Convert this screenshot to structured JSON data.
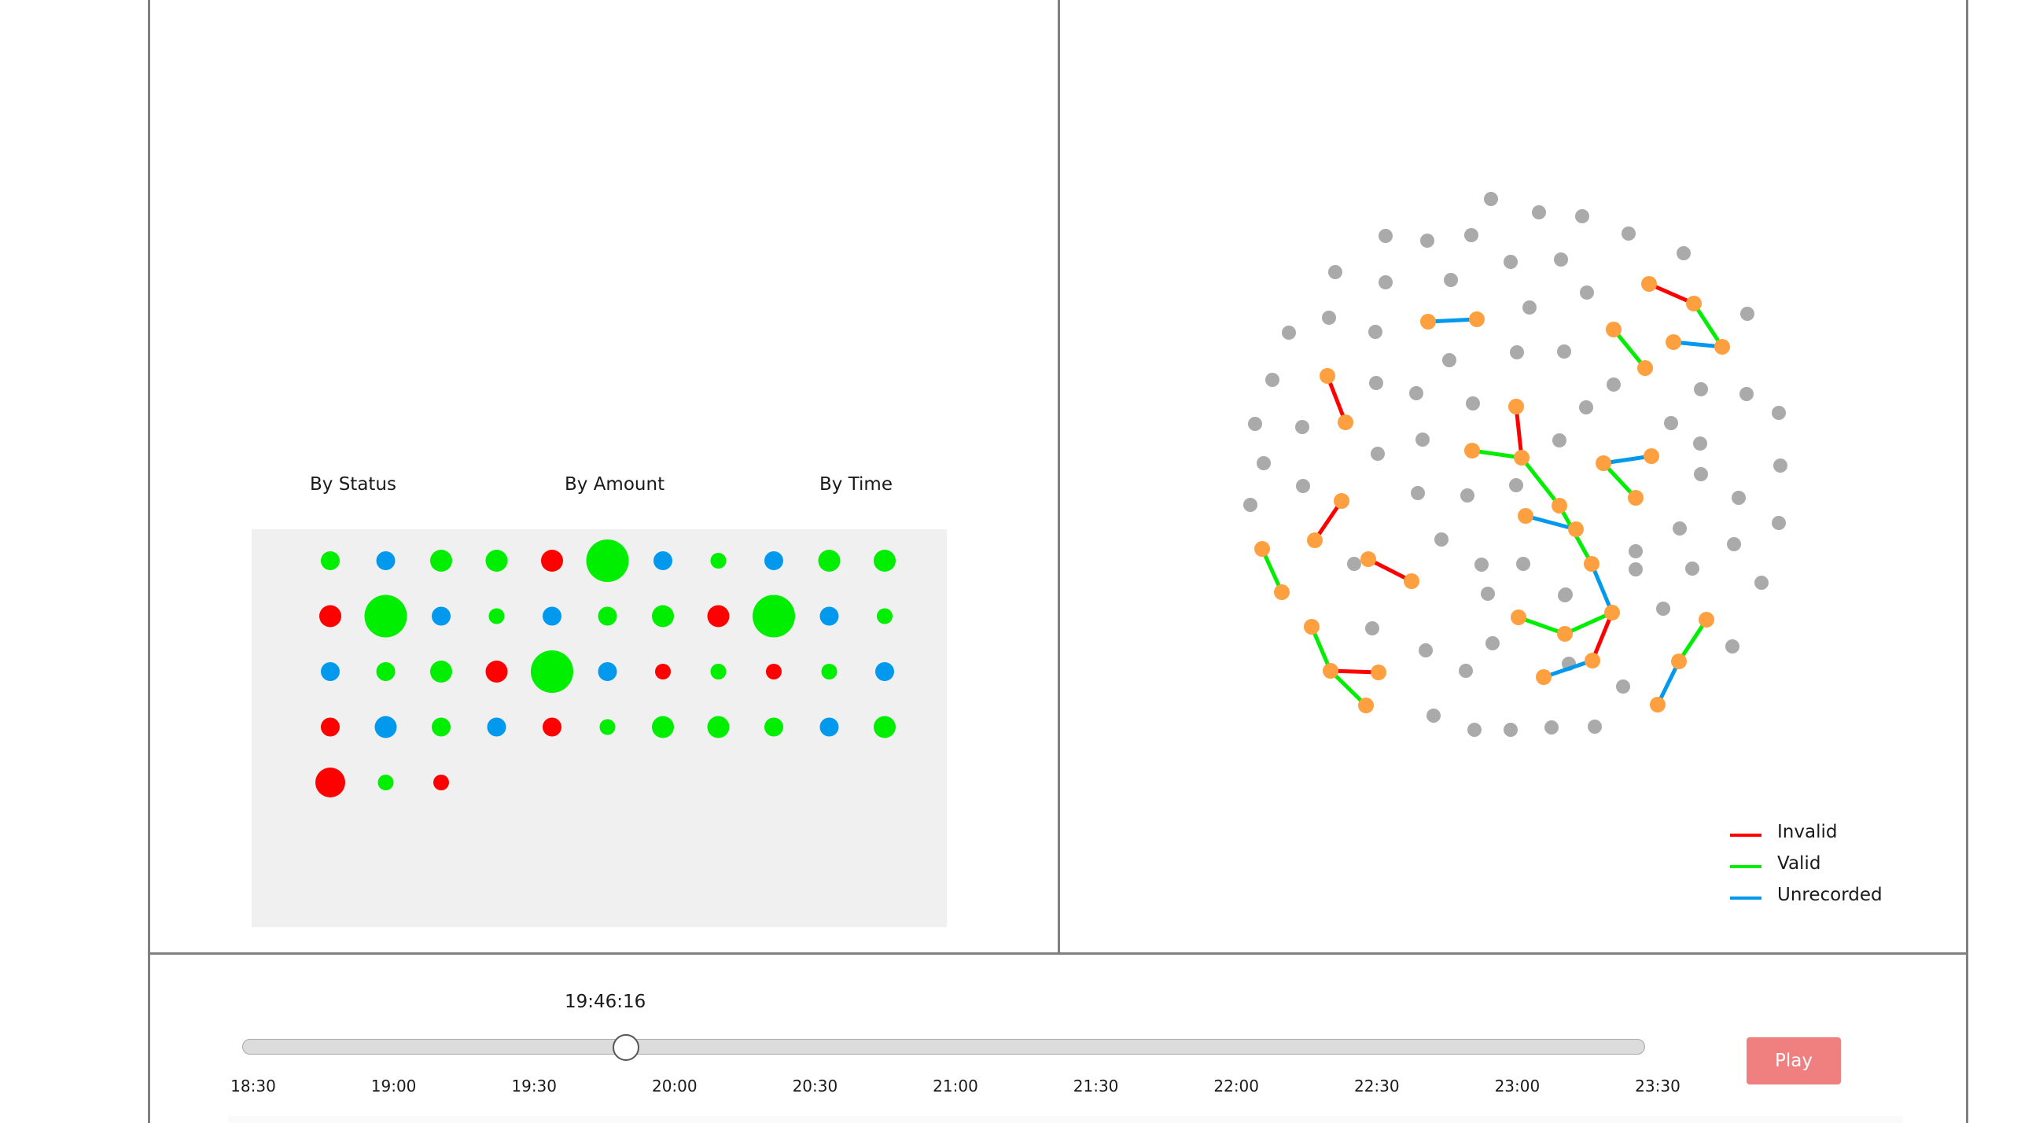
{
  "sort_controls": {
    "by_status": "By Status",
    "by_amount": "By Amount",
    "by_time": "By Time"
  },
  "colors": {
    "invalid": "#ff0000",
    "valid": "#00ee00",
    "unrecorded": "#0099ee",
    "node_idle": "#aaaaaa",
    "node_active": "#ffa040",
    "play_button": "#f08080"
  },
  "transactions": [
    {
      "status": "valid",
      "amount": "m"
    },
    {
      "status": "unrecorded",
      "amount": "m"
    },
    {
      "status": "valid",
      "amount": "l"
    },
    {
      "status": "valid",
      "amount": "l"
    },
    {
      "status": "invalid",
      "amount": "l"
    },
    {
      "status": "valid",
      "amount": "xl"
    },
    {
      "status": "unrecorded",
      "amount": "m"
    },
    {
      "status": "valid",
      "amount": "s"
    },
    {
      "status": "unrecorded",
      "amount": "m"
    },
    {
      "status": "valid",
      "amount": "l"
    },
    {
      "status": "valid",
      "amount": "l"
    },
    {
      "status": "invalid",
      "amount": "l"
    },
    {
      "status": "valid",
      "amount": "xl"
    },
    {
      "status": "unrecorded",
      "amount": "m"
    },
    {
      "status": "valid",
      "amount": "s"
    },
    {
      "status": "unrecorded",
      "amount": "m"
    },
    {
      "status": "valid",
      "amount": "m"
    },
    {
      "status": "valid",
      "amount": "l"
    },
    {
      "status": "invalid",
      "amount": "l"
    },
    {
      "status": "valid",
      "amount": "xl"
    },
    {
      "status": "unrecorded",
      "amount": "m"
    },
    {
      "status": "valid",
      "amount": "s"
    },
    {
      "status": "unrecorded",
      "amount": "m"
    },
    {
      "status": "valid",
      "amount": "m"
    },
    {
      "status": "valid",
      "amount": "l"
    },
    {
      "status": "invalid",
      "amount": "l"
    },
    {
      "status": "valid",
      "amount": "xl"
    },
    {
      "status": "unrecorded",
      "amount": "m"
    },
    {
      "status": "invalid",
      "amount": "s"
    },
    {
      "status": "valid",
      "amount": "s"
    },
    {
      "status": "invalid",
      "amount": "s"
    },
    {
      "status": "valid",
      "amount": "s"
    },
    {
      "status": "unrecorded",
      "amount": "m"
    },
    {
      "status": "invalid",
      "amount": "m"
    },
    {
      "status": "unrecorded",
      "amount": "l"
    },
    {
      "status": "valid",
      "amount": "m"
    },
    {
      "status": "unrecorded",
      "amount": "m"
    },
    {
      "status": "invalid",
      "amount": "m"
    },
    {
      "status": "valid",
      "amount": "s"
    },
    {
      "status": "valid",
      "amount": "l"
    },
    {
      "status": "valid",
      "amount": "l"
    },
    {
      "status": "valid",
      "amount": "m"
    },
    {
      "status": "unrecorded",
      "amount": "m"
    },
    {
      "status": "valid",
      "amount": "l"
    },
    {
      "status": "invalid",
      "amount": "xl_m"
    },
    {
      "status": "valid",
      "amount": "s"
    },
    {
      "status": "invalid",
      "amount": "s"
    }
  ],
  "network": {
    "idle_nodes": [
      [
        1896,
        253
      ],
      [
        1957,
        270
      ],
      [
        2012,
        275
      ],
      [
        2071,
        297
      ],
      [
        1762,
        300
      ],
      [
        1815,
        306
      ],
      [
        1871,
        299
      ],
      [
        1921,
        333
      ],
      [
        1985,
        330
      ],
      [
        2141,
        322
      ],
      [
        1698,
        346
      ],
      [
        1762,
        359
      ],
      [
        1845,
        356
      ],
      [
        1945,
        391
      ],
      [
        2018,
        372
      ],
      [
        1639,
        423
      ],
      [
        1690,
        404
      ],
      [
        1749,
        422
      ],
      [
        2222,
        399
      ],
      [
        1618,
        483
      ],
      [
        1750,
        487
      ],
      [
        1801,
        500
      ],
      [
        1843,
        458
      ],
      [
        1929,
        448
      ],
      [
        1989,
        447
      ],
      [
        2052,
        489
      ],
      [
        2163,
        495
      ],
      [
        2221,
        501
      ],
      [
        1596,
        539
      ],
      [
        1656,
        543
      ],
      [
        1752,
        577
      ],
      [
        1809,
        559
      ],
      [
        1873,
        513
      ],
      [
        1983,
        560
      ],
      [
        2017,
        518
      ],
      [
        2125,
        538
      ],
      [
        2162,
        564
      ],
      [
        2262,
        525
      ],
      [
        1607,
        589
      ],
      [
        1657,
        618
      ],
      [
        1803,
        627
      ],
      [
        1866,
        630
      ],
      [
        1928,
        617
      ],
      [
        2163,
        603
      ],
      [
        2211,
        633
      ],
      [
        2264,
        592
      ],
      [
        1590,
        642
      ],
      [
        1833,
        686
      ],
      [
        1884,
        718
      ],
      [
        1937,
        717
      ],
      [
        2080,
        701
      ],
      [
        2136,
        672
      ],
      [
        2205,
        692
      ],
      [
        2262,
        665
      ],
      [
        1722,
        717
      ],
      [
        1892,
        755
      ],
      [
        1991,
        756
      ],
      [
        2080,
        724
      ],
      [
        2152,
        723
      ],
      [
        2240,
        741
      ],
      [
        1745,
        799
      ],
      [
        1898,
        818
      ],
      [
        1990,
        757
      ],
      [
        1995,
        844
      ],
      [
        2115,
        774
      ],
      [
        1813,
        827
      ],
      [
        1864,
        853
      ],
      [
        1823,
        910
      ],
      [
        1875,
        928
      ],
      [
        1921,
        928
      ],
      [
        1973,
        925
      ],
      [
        2028,
        924
      ],
      [
        2203,
        822
      ],
      [
        2064,
        873
      ]
    ],
    "edges": [
      {
        "status": "invalid",
        "from": [
          2097,
          361
        ],
        "to": [
          2154,
          386
        ]
      },
      {
        "status": "valid",
        "from": [
          2154,
          386
        ],
        "to": [
          2190,
          441
        ]
      },
      {
        "status": "unrecorded",
        "from": [
          2128,
          435
        ],
        "to": [
          2190,
          441
        ]
      },
      {
        "status": "valid",
        "from": [
          2052,
          419
        ],
        "to": [
          2092,
          468
        ]
      },
      {
        "status": "unrecorded",
        "from": [
          1816,
          409
        ],
        "to": [
          1878,
          406
        ]
      },
      {
        "status": "invalid",
        "from": [
          1688,
          478
        ],
        "to": [
          1711,
          537
        ]
      },
      {
        "status": "invalid",
        "from": [
          1928,
          517
        ],
        "to": [
          1935,
          582
        ]
      },
      {
        "status": "valid",
        "from": [
          1872,
          573
        ],
        "to": [
          1935,
          582
        ]
      },
      {
        "status": "valid",
        "from": [
          1935,
          582
        ],
        "to": [
          1983,
          643
        ]
      },
      {
        "status": "unrecorded",
        "from": [
          2039,
          589
        ],
        "to": [
          2100,
          580
        ]
      },
      {
        "status": "valid",
        "from": [
          2039,
          589
        ],
        "to": [
          2080,
          633
        ]
      },
      {
        "status": "invalid",
        "from": [
          1706,
          637
        ],
        "to": [
          1672,
          687
        ]
      },
      {
        "status": "unrecorded",
        "from": [
          1940,
          656
        ],
        "to": [
          2004,
          673
        ]
      },
      {
        "status": "valid",
        "from": [
          1983,
          643
        ],
        "to": [
          2024,
          717
        ]
      },
      {
        "status": "valid",
        "from": [
          1605,
          698
        ],
        "to": [
          1630,
          753
        ]
      },
      {
        "status": "invalid",
        "from": [
          1740,
          711
        ],
        "to": [
          1795,
          739
        ]
      },
      {
        "status": "unrecorded",
        "from": [
          2024,
          717
        ],
        "to": [
          2050,
          779
        ]
      },
      {
        "status": "valid",
        "from": [
          1931,
          785
        ],
        "to": [
          1990,
          806
        ]
      },
      {
        "status": "valid",
        "from": [
          1990,
          806
        ],
        "to": [
          2050,
          779
        ]
      },
      {
        "status": "invalid",
        "from": [
          2050,
          779
        ],
        "to": [
          2025,
          840
        ]
      },
      {
        "status": "unrecorded",
        "from": [
          1963,
          861
        ],
        "to": [
          2025,
          840
        ]
      },
      {
        "status": "valid",
        "from": [
          1668,
          797
        ],
        "to": [
          1692,
          853
        ]
      },
      {
        "status": "invalid",
        "from": [
          1692,
          853
        ],
        "to": [
          1753,
          855
        ]
      },
      {
        "status": "valid",
        "from": [
          1692,
          853
        ],
        "to": [
          1737,
          897
        ]
      },
      {
        "status": "valid",
        "from": [
          2170,
          788
        ],
        "to": [
          2135,
          841
        ]
      },
      {
        "status": "unrecorded",
        "from": [
          2135,
          841
        ],
        "to": [
          2108,
          896
        ]
      }
    ]
  },
  "legend": [
    {
      "label": "Invalid",
      "status": "invalid"
    },
    {
      "label": "Valid",
      "status": "valid"
    },
    {
      "label": "Unrecorded",
      "status": "unrecorded"
    }
  ],
  "timeline": {
    "current_time": "19:46:16",
    "position": 0.2654,
    "ticks": [
      "18:30",
      "19:00",
      "19:30",
      "20:00",
      "20:30",
      "21:00",
      "21:30",
      "22:00",
      "22:30",
      "23:00",
      "23:30"
    ],
    "play_label": "Play"
  }
}
